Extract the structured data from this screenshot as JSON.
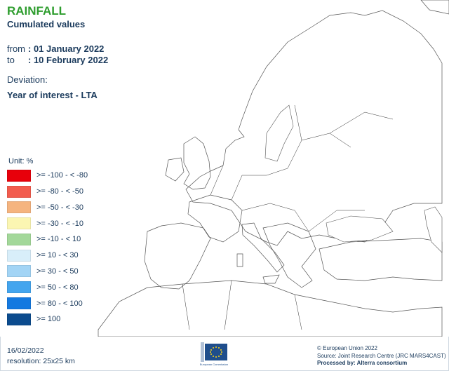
{
  "header": {
    "title": "RAINFALL",
    "subtitle": "Cumulated values"
  },
  "period": {
    "from_label": "from",
    "from_value": ": 01 January 2022",
    "to_label": "to",
    "to_value": ": 10 February 2022"
  },
  "deviation": {
    "label": "Deviation:",
    "value": "Year of interest - LTA"
  },
  "legend": {
    "unit": "Unit: %",
    "items": [
      {
        "label": ">= -100 - < -80",
        "color": "#e8000b"
      },
      {
        "label": ">= -80 - < -50",
        "color": "#f25c4e"
      },
      {
        "label": ">= -50 - < -30",
        "color": "#f5b47f"
      },
      {
        "label": ">= -30 - < -10",
        "color": "#fbf6b2"
      },
      {
        "label": ">= -10 - < 10",
        "color": "#a3d89a"
      },
      {
        "label": ">= 10 - < 30",
        "color": "#d8eefa"
      },
      {
        "label": ">= 30 - < 50",
        "color": "#a2d4f5"
      },
      {
        "label": ">= 50 - < 80",
        "color": "#44a5ee"
      },
      {
        "label": ">= 80 - < 100",
        "color": "#1479e0"
      },
      {
        "label": ">= 100",
        "color": "#0b4b8e"
      }
    ]
  },
  "footer": {
    "date": "16/02/2022",
    "resolution": "resolution: 25x25 km",
    "logo_text": "European Commission",
    "copyright": "© European Union 2022",
    "source": "Source: Joint Research Centre (JRC MARS4CAST)",
    "processed": "Processed by: Alterra consortium"
  }
}
